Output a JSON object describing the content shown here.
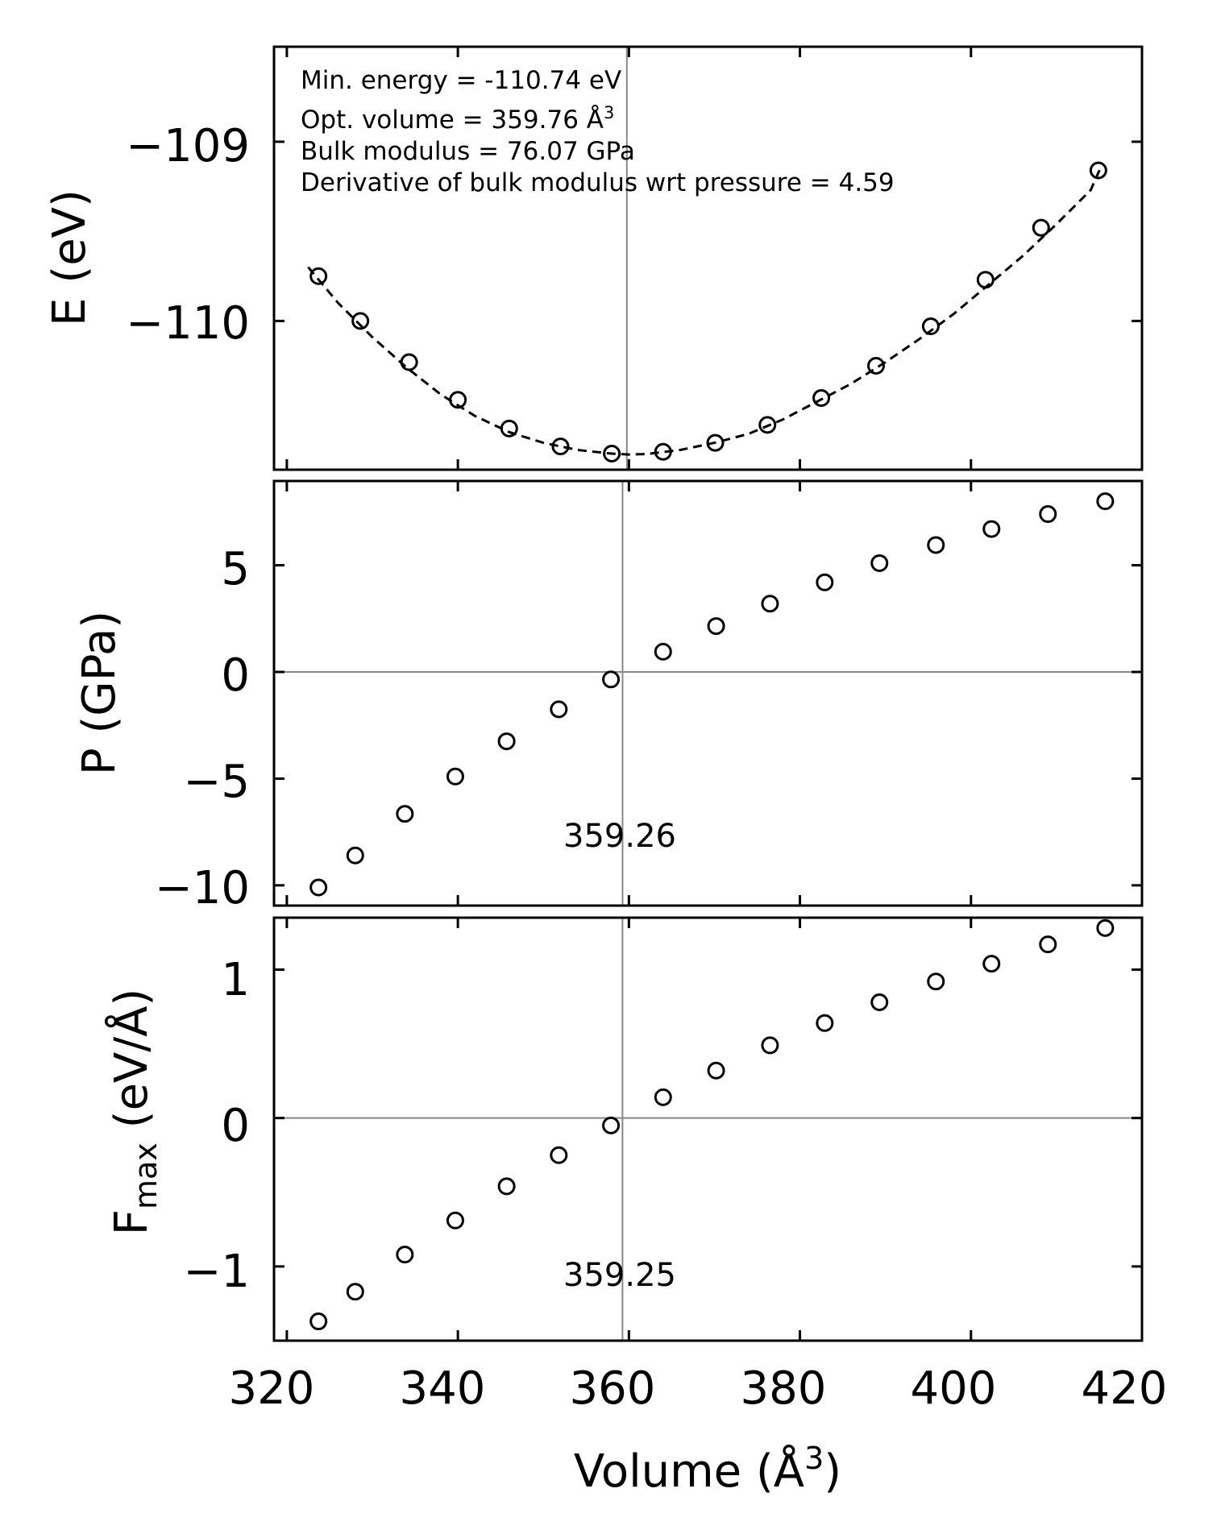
{
  "chart_data": [
    {
      "type": "scatter",
      "panel": "energy",
      "ylabel": "E (eV)",
      "xlim": [
        318.5,
        420
      ],
      "ylim": [
        -110.83,
        -108.47
      ],
      "yticks": [
        -110,
        -109
      ],
      "ytick_labels": [
        "−110",
        "−109"
      ],
      "xticks": [
        320,
        340,
        360,
        380,
        400,
        420
      ],
      "x": [
        323.7,
        328.6,
        334.3,
        340.0,
        346.0,
        352.0,
        358.0,
        364.0,
        370.1,
        376.2,
        382.5,
        388.9,
        395.3,
        401.7,
        408.2,
        414.9
      ],
      "y": [
        -109.75,
        -110.0,
        -110.23,
        -110.44,
        -110.6,
        -110.7,
        -110.74,
        -110.73,
        -110.68,
        -110.58,
        -110.43,
        -110.25,
        -110.03,
        -109.77,
        -109.48,
        -109.16
      ],
      "fit_line": {
        "style": "dashed",
        "x": [
          322.5,
          326.0,
          330.0,
          334.0,
          338.0,
          342.0,
          346.0,
          350.0,
          354.0,
          358.0,
          360.0,
          362.0,
          366.0,
          370.0,
          374.0,
          378.0,
          382.0,
          386.0,
          390.0,
          394.0,
          398.0,
          402.0,
          406.0,
          410.0,
          414.0,
          415.3
        ],
        "y": [
          -109.7,
          -109.9,
          -110.09,
          -110.26,
          -110.41,
          -110.53,
          -110.62,
          -110.68,
          -110.72,
          -110.74,
          -110.745,
          -110.743,
          -110.72,
          -110.68,
          -110.63,
          -110.55,
          -110.45,
          -110.35,
          -110.23,
          -110.1,
          -109.96,
          -109.8,
          -109.64,
          -109.46,
          -109.27,
          -109.13
        ]
      },
      "vline_x": 359.76,
      "info_lines": [
        "Min. energy = -110.74 eV",
        "Opt. volume = 359.76 Å",
        "Bulk modulus = 76.07 GPa",
        "Derivative of bulk modulus wrt pressure = 4.59"
      ],
      "info_superscript": "3"
    },
    {
      "type": "scatter",
      "panel": "pressure",
      "ylabel": "P (GPa)",
      "xlim": [
        318.5,
        420
      ],
      "ylim": [
        -10.95,
        8.95
      ],
      "yticks": [
        -10,
        -5,
        0,
        5
      ],
      "ytick_labels": [
        "−10",
        "−5",
        "0",
        "5"
      ],
      "xticks": [
        320,
        340,
        360,
        380,
        400,
        420
      ],
      "x": [
        323.7,
        328.0,
        333.8,
        339.7,
        345.7,
        351.8,
        357.9,
        364.0,
        370.2,
        376.5,
        382.9,
        389.3,
        395.9,
        402.4,
        409.0,
        415.7
      ],
      "y": [
        -10.1,
        -8.6,
        -6.65,
        -4.9,
        -3.25,
        -1.75,
        -0.35,
        0.95,
        2.15,
        3.2,
        4.2,
        5.1,
        5.95,
        6.7,
        7.4,
        8.0
      ],
      "vline_x": 359.26,
      "hline_y": 0,
      "annotation": "359.26"
    },
    {
      "type": "scatter",
      "panel": "force",
      "ylabel_main": "F",
      "ylabel_sub": "max",
      "ylabel_rest": " (eV/Å)",
      "xlabel_main": "Volume (Å",
      "xlabel_sup": "3",
      "xlabel_end": ")",
      "xlim": [
        318.5,
        420
      ],
      "ylim": [
        -1.5,
        1.35
      ],
      "yticks": [
        -1,
        0,
        1
      ],
      "ytick_labels": [
        "−1",
        "0",
        "1"
      ],
      "xticks": [
        320,
        340,
        360,
        380,
        400,
        420
      ],
      "xtick_labels": [
        "320",
        "340",
        "360",
        "380",
        "400",
        "420"
      ],
      "x": [
        323.7,
        328.0,
        333.8,
        339.7,
        345.7,
        351.8,
        357.9,
        364.0,
        370.2,
        376.5,
        382.9,
        389.3,
        395.9,
        402.4,
        409.0,
        415.7
      ],
      "y": [
        -1.37,
        -1.17,
        -0.92,
        -0.69,
        -0.46,
        -0.25,
        -0.05,
        0.14,
        0.32,
        0.49,
        0.64,
        0.78,
        0.92,
        1.04,
        1.17,
        1.28
      ],
      "vline_x": 359.25,
      "hline_y": 0,
      "annotation": "359.25"
    }
  ]
}
